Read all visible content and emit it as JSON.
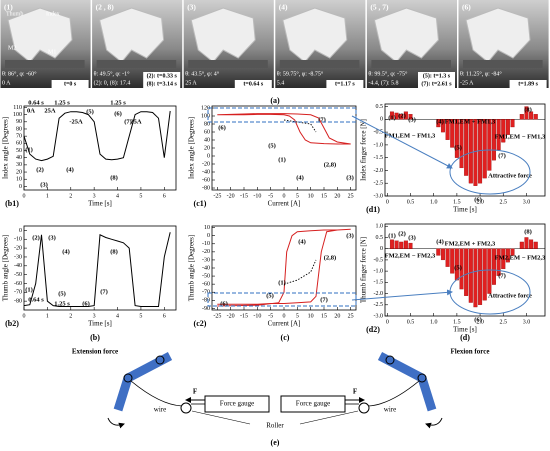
{
  "photos": [
    {
      "label": "(1)",
      "parts": [
        "Thumb",
        "Index",
        "M2",
        "M1"
      ],
      "angles": "θ: 86°, φ: -60°",
      "current": "0 A",
      "times": [
        "t=0 s"
      ]
    },
    {
      "label": "(2 , 8)",
      "parts": [],
      "angles": "θ: 49.5°, φ: -1°",
      "current": "(2): 0, (8): 17.4",
      "times": [
        "(2): t=0.33 s",
        "(8): t=3.14 s"
      ]
    },
    {
      "label": "(3)",
      "parts": [],
      "angles": "θ: 43.5°, φ: 4°",
      "current": "25 A",
      "times": [
        "t=0.64 s"
      ]
    },
    {
      "label": "(4)",
      "parts": [],
      "angles": "θ: 59.75°, φ: -8.75°",
      "current": "5.4",
      "times": [
        "t=1.17 s"
      ]
    },
    {
      "label": "(5 , 7)",
      "parts": [],
      "angles": "θ: 99.5°, φ: -75°",
      "current": "-4.4, (7): 5.8",
      "times": [
        "(5): t=1.3 s",
        "(7): t=2.61 s"
      ]
    },
    {
      "label": "(6)",
      "parts": [],
      "angles": "θ: 11.25°, φ: -84°",
      "current": "-25 A",
      "times": [
        "t=1.89 s"
      ]
    }
  ],
  "photos_label": "(a)",
  "group_labels": [
    "(b)",
    "(c)",
    "(d)"
  ],
  "chart_data": [
    {
      "type": "line",
      "panel_label": "(b1)",
      "x_label": "Time [s]",
      "y_label": "Index angle [Degrees]",
      "x": [
        0,
        0.25,
        0.5,
        0.75,
        1,
        1.25,
        1.5,
        1.75,
        2,
        2.25,
        2.5,
        2.75,
        3,
        3.25,
        3.5,
        3.75,
        4,
        4.25,
        4.5,
        4.75,
        5,
        5.25,
        5.5,
        5.75,
        6,
        6.25
      ],
      "series": [
        {
          "color": "#000000",
          "values": [
            70,
            45,
            38,
            36,
            38,
            42,
            95,
            102,
            104,
            104,
            103,
            100,
            90,
            45,
            38,
            37,
            38,
            40,
            70,
            100,
            104,
            104,
            103,
            95,
            40,
            105
          ]
        }
      ],
      "xlim": [
        0,
        6.5
      ],
      "xticks": [
        0,
        1,
        2,
        3,
        4,
        5,
        6
      ],
      "ylim": [
        -5,
        112
      ],
      "yticks": [
        0,
        10,
        20,
        30,
        40,
        50,
        60,
        70,
        80,
        90,
        100,
        110
      ],
      "annotations": [
        "0.64 s",
        "1.25 s",
        "1.25 s",
        "0A",
        "25A",
        "-25A",
        "25A",
        "(1)",
        "(2)",
        "(3)",
        "(4)",
        "(5)",
        "(6)",
        "(7)",
        "(8)"
      ]
    },
    {
      "type": "line",
      "panel_label": "(b2)",
      "x_label": "Time [s]",
      "y_label": "Thumb angle [Degrees]",
      "x": [
        0,
        0.25,
        0.5,
        0.75,
        1,
        1.25,
        1.5,
        1.75,
        2,
        2.25,
        2.5,
        2.75,
        3,
        3.25,
        3.5,
        3.75,
        4,
        4.25,
        4.5,
        4.75,
        5,
        5.25,
        5.5,
        5.75,
        6,
        6.25
      ],
      "series": [
        {
          "color": "#000000",
          "values": [
            -85,
            -84,
            -60,
            -5,
            -80,
            -85,
            -86,
            -86,
            -86,
            -86,
            -86,
            -86,
            -85,
            -5,
            -8,
            -10,
            -12,
            -14,
            -20,
            -85,
            -86,
            -86,
            -86,
            -86,
            -30,
            -2
          ]
        }
      ],
      "xlim": [
        0,
        6.5
      ],
      "xticks": [
        0,
        1,
        2,
        3,
        4,
        5,
        6
      ],
      "ylim": [
        -90,
        5
      ],
      "yticks": [
        -80,
        -70,
        -60,
        -50,
        -40,
        -30,
        -20,
        -10,
        0
      ],
      "annotations": [
        "(1)",
        "(2)",
        "(3)",
        "(4)",
        "0.64 s",
        "(5)",
        "1.25 s",
        "(6)",
        "(7)",
        "(8)"
      ]
    },
    {
      "type": "line",
      "x_label": "Current [A]",
      "y_label": "Index angle [Degrees]",
      "panel_label": "(c1)",
      "series": [
        {
          "color": "#d62020",
          "x": [
            -25,
            -20,
            -15,
            -10,
            -5,
            0,
            5,
            10,
            13,
            15,
            17,
            20,
            25,
            20,
            15,
            10,
            8,
            6,
            4,
            2,
            0,
            -5,
            -10,
            -15,
            -20,
            -25
          ],
          "values": [
            103,
            104,
            105,
            106,
            106,
            106,
            105,
            103,
            95,
            70,
            45,
            35,
            30,
            30,
            31,
            33,
            40,
            60,
            90,
            100,
            103,
            104,
            104,
            103,
            103,
            103
          ]
        },
        {
          "color": "#000000",
          "dotted": true,
          "x": [
            0,
            5,
            10,
            12
          ],
          "values": [
            90,
            85,
            80,
            60
          ]
        }
      ],
      "xlim": [
        -27,
        27
      ],
      "xticks": [
        -25,
        -20,
        -15,
        -10,
        -5,
        0,
        5,
        10,
        15,
        20,
        25
      ],
      "ylim": [
        -85,
        125
      ],
      "yticks": [
        -80,
        -60,
        -40,
        -20,
        0,
        20,
        40,
        60,
        80,
        100,
        120
      ],
      "annotations": [
        "(1)",
        "(2,8)",
        "(3)",
        "(4)",
        "(5)",
        "(6)",
        "(7)"
      ]
    },
    {
      "type": "line",
      "x_label": "Current [A]",
      "y_label": "Thumb angle [Degrees]",
      "panel_label": "(c2)",
      "series": [
        {
          "color": "#d62020",
          "x": [
            -25,
            -20,
            -15,
            -10,
            -5,
            0,
            5,
            10,
            12,
            14,
            16,
            20,
            25,
            20,
            15,
            10,
            5,
            3,
            1,
            0,
            -2,
            -10,
            -25
          ],
          "values": [
            -85,
            -85,
            -85,
            -85,
            -84,
            -84,
            -83,
            -82,
            -75,
            -20,
            5,
            7,
            8,
            7,
            7,
            6,
            5,
            0,
            -20,
            -70,
            -83,
            -86,
            -87
          ]
        },
        {
          "color": "#000000",
          "dotted": true,
          "x": [
            0,
            5,
            10,
            12
          ],
          "values": [
            -60,
            -55,
            -45,
            -30
          ]
        }
      ],
      "xlim": [
        -27,
        27
      ],
      "xticks": [
        -25,
        -20,
        -15,
        -10,
        -5,
        0,
        5,
        10,
        15,
        20,
        25
      ],
      "ylim": [
        -92,
        12
      ],
      "yticks": [
        -90,
        -80,
        -70,
        -60,
        -50,
        -40,
        -30,
        -20,
        -10,
        0,
        10
      ],
      "annotations": [
        "(1)",
        "(2,8)",
        "(3)",
        "(4)",
        "(5)",
        "(6)",
        "(7)"
      ]
    },
    {
      "type": "bar",
      "x_label": "Time [s]",
      "y_label": "Index finger force [N]",
      "panel_label": "(d1)",
      "color": "#e02020",
      "x": [
        0.1,
        0.2,
        0.3,
        0.4,
        0.5,
        1.1,
        1.2,
        1.3,
        1.4,
        1.5,
        1.6,
        1.7,
        1.8,
        1.9,
        2.0,
        2.1,
        2.2,
        2.3,
        2.4,
        2.5,
        2.6,
        2.7,
        2.9,
        3.0,
        3.1,
        3.2
      ],
      "values": [
        0.3,
        0.25,
        0.2,
        0.3,
        0.2,
        -0.3,
        -0.5,
        -0.8,
        -1.1,
        -1.5,
        -1.9,
        -2.2,
        -2.5,
        -2.6,
        -2.5,
        -2.3,
        -2.0,
        -1.6,
        -1.2,
        -0.9,
        -0.6,
        -0.3,
        0.2,
        0.5,
        0.3,
        0.2
      ],
      "xlim": [
        -0.05,
        3.4
      ],
      "xticks": [
        0,
        0.5,
        {
          "value": 1,
          "label": "1.0"
        },
        1.5,
        {
          "value": 2,
          "label": "2.0"
        },
        2.5,
        {
          "value": 3,
          "label": "3.0"
        }
      ],
      "ylim": [
        -3,
        0.6
      ],
      "yticks": [
        {
          "value": -3,
          "label": "-3.0"
        },
        -2.5,
        {
          "value": -2,
          "label": "-2.0"
        },
        -1.5,
        {
          "value": -1,
          "label": "-1.0"
        },
        -0.5,
        0,
        0.5
      ],
      "annotations": [
        "(1)",
        "(2)",
        "(3)",
        "(4)",
        "(5)",
        "(6)",
        "(7)",
        "(8)",
        "FM1,EM + FM1,3",
        "FM1,EM − FM1,3",
        "FM1,EM − FM1,3",
        "Attractive force"
      ]
    },
    {
      "type": "bar",
      "x_label": "Time [s]",
      "y_label": "Thumb finger force [N]",
      "panel_label": "(d2)",
      "color": "#e02020",
      "x": [
        0.1,
        0.2,
        0.3,
        0.4,
        0.5,
        1.1,
        1.2,
        1.3,
        1.4,
        1.5,
        1.6,
        1.7,
        1.8,
        1.9,
        2.0,
        2.1,
        2.2,
        2.3,
        2.4,
        2.5,
        2.6,
        2.7,
        2.9,
        3.0,
        3.1,
        3.2
      ],
      "values": [
        0.4,
        0.35,
        0.3,
        0.35,
        0.25,
        -0.3,
        -0.5,
        -0.8,
        -1.1,
        -1.4,
        -1.8,
        -2.1,
        -2.4,
        -2.6,
        -2.5,
        -2.3,
        -2.0,
        -1.6,
        -1.2,
        -0.9,
        -0.6,
        -0.3,
        0.3,
        0.5,
        0.4,
        0.3
      ],
      "xlim": [
        -0.05,
        3.4
      ],
      "xticks": [
        0,
        0.5,
        {
          "value": 1,
          "label": "1.0"
        },
        1.5,
        {
          "value": 2,
          "label": "2.0"
        },
        2.5,
        {
          "value": 3,
          "label": "3.0"
        }
      ],
      "ylim": [
        -3,
        1.1
      ],
      "yticks": [
        {
          "value": -3,
          "label": "-3.0"
        },
        -2.5,
        {
          "value": -2,
          "label": "-2.0"
        },
        -1.5,
        {
          "value": -1,
          "label": "-1.0"
        },
        -0.5,
        0,
        0.5,
        {
          "value": 1,
          "label": "1.0"
        }
      ],
      "annotations": [
        "(1)",
        "(2)",
        "(3)",
        "(4)",
        "(5)",
        "(6)",
        "(7)",
        "(8)",
        "FM2,EM + FM2,3",
        "FM2,EM − FM2,3",
        "FM2,EM − FM2,3",
        "Attractive force"
      ]
    }
  ],
  "diagram": {
    "left_title": "Extension force",
    "right_title": "Flexion force",
    "wire_left": "wire",
    "wire_right": "wire",
    "gauge_left": "Force gauge",
    "gauge_right": "Force gauge",
    "force_left": "F",
    "force_right": "F",
    "roller": "Roller",
    "label": "(e)"
  }
}
